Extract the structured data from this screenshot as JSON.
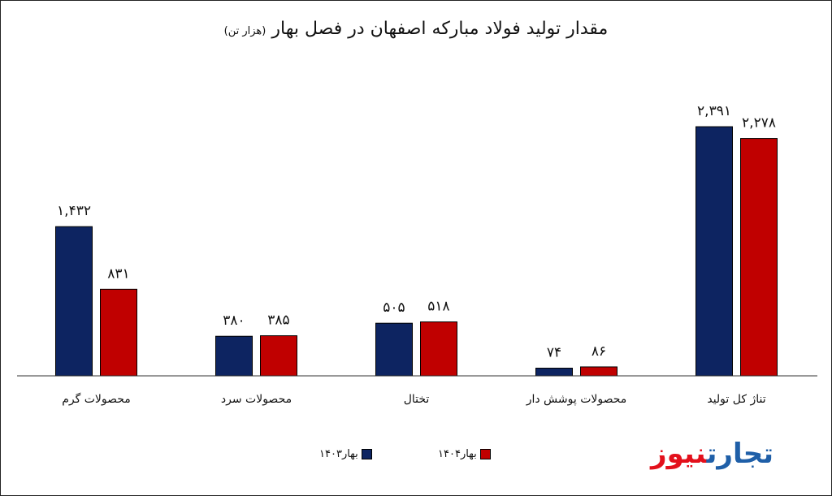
{
  "chart_data": {
    "type": "bar",
    "title": "مقدار تولید فولاد مبارکه اصفهان در فصل بهار",
    "subtitle": "(هزار تن)",
    "categories": [
      "محصولات گرم",
      "محصولات سرد",
      "تختال",
      "محصولات پوشش دار",
      "تناژ کل تولید"
    ],
    "series": [
      {
        "name": "بهار۱۴۰۳",
        "color": "#0d2461",
        "values": [
          1432,
          380,
          505,
          74,
          2391
        ],
        "labels": [
          "۱,۴۳۲",
          "۳۸۰",
          "۵۰۵",
          "۷۴",
          "۲,۳۹۱"
        ]
      },
      {
        "name": "بهار۱۴۰۴",
        "color": "#c00000",
        "values": [
          831,
          385,
          518,
          86,
          2278
        ],
        "labels": [
          "۸۳۱",
          "۳۸۵",
          "۵۱۸",
          "۸۶",
          "۲,۲۷۸"
        ]
      }
    ],
    "ylim": [
      0,
      2820
    ],
    "grid": false,
    "legend": "bottom-center"
  },
  "logo": {
    "part1": "تجارت",
    "part2": "نیوز",
    "color1": "#1f5fa8",
    "color2": "#e3101b"
  }
}
